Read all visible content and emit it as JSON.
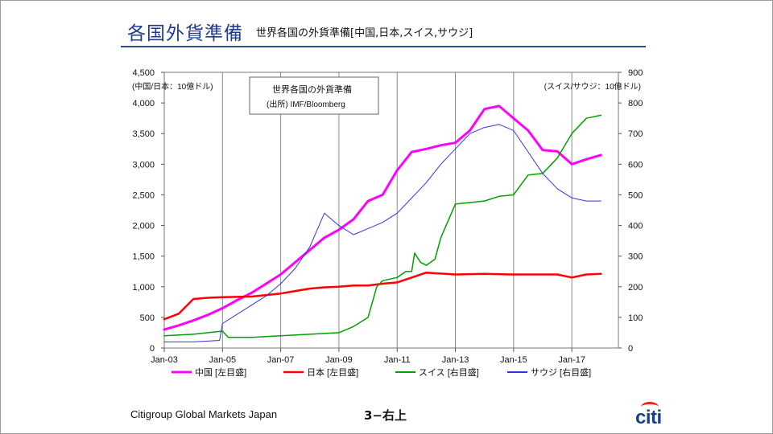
{
  "slide": {
    "title": "各国外貨準備",
    "subtitle": "世界各国の外貨準備[中国,日本,スイス,サウジ]",
    "footer_company": "Citigroup Global Markets Japan",
    "page_label": "3−右上",
    "logo_text": "citi"
  },
  "chart_data": {
    "type": "line",
    "annotation": [
      "世界各国の外貨準備",
      "(出所) IMF/Bloomberg"
    ],
    "left_axis_label": "(中国/日本：10億ドル)",
    "right_axis_label": "(スイス/サウジ：10億ドル)",
    "x_ticks": [
      "Jan-03",
      "Jan-05",
      "Jan-07",
      "Jan-09",
      "Jan-11",
      "Jan-13",
      "Jan-15",
      "Jan-17"
    ],
    "x_range": [
      2003.0,
      2018.6
    ],
    "y_left": {
      "min": 0,
      "max": 4500,
      "ticks": [
        "0",
        "500",
        "1,000",
        "1,500",
        "2,000",
        "2,500",
        "3,000",
        "3,500",
        "4,000",
        "4,500"
      ]
    },
    "y_right": {
      "min": 0,
      "max": 900,
      "ticks": [
        "0",
        "100",
        "200",
        "300",
        "400",
        "500",
        "600",
        "700",
        "800",
        "900"
      ]
    },
    "grid": "vertical",
    "legend_position": "bottom",
    "series": [
      {
        "name": "中国 [左目盛]",
        "axis": "left",
        "color": "#ff00ff",
        "width": 3,
        "x": [
          2003.0,
          2003.5,
          2004.0,
          2004.5,
          2005.0,
          2005.5,
          2006.0,
          2006.5,
          2007.0,
          2007.5,
          2008.0,
          2008.5,
          2009.0,
          2009.5,
          2010.0,
          2010.5,
          2011.0,
          2011.5,
          2012.0,
          2012.5,
          2013.0,
          2013.5,
          2014.0,
          2014.5,
          2015.0,
          2015.5,
          2016.0,
          2016.5,
          2017.0,
          2017.5,
          2018.0
        ],
        "y": [
          300,
          370,
          450,
          540,
          650,
          780,
          900,
          1050,
          1200,
          1400,
          1600,
          1800,
          1930,
          2100,
          2400,
          2500,
          2900,
          3200,
          3250,
          3310,
          3350,
          3550,
          3900,
          3950,
          3750,
          3550,
          3230,
          3210,
          3000,
          3080,
          3150
        ]
      },
      {
        "name": "日本 [左目盛]",
        "axis": "left",
        "color": "#ff0000",
        "width": 2.5,
        "x": [
          2003.0,
          2003.5,
          2004.0,
          2004.5,
          2005.0,
          2006.0,
          2007.0,
          2007.5,
          2008.0,
          2008.5,
          2009.0,
          2009.5,
          2010.0,
          2010.5,
          2011.0,
          2011.5,
          2012.0,
          2013.0,
          2014.0,
          2015.0,
          2016.0,
          2016.5,
          2017.0,
          2017.5,
          2018.0
        ],
        "y": [
          470,
          560,
          800,
          820,
          830,
          840,
          890,
          930,
          970,
          990,
          1000,
          1020,
          1020,
          1050,
          1070,
          1150,
          1230,
          1200,
          1210,
          1200,
          1200,
          1200,
          1150,
          1200,
          1210
        ]
      },
      {
        "name": "スイス [右目盛]",
        "axis": "right",
        "color": "#00a000",
        "width": 1.5,
        "x": [
          2003.0,
          2004.0,
          2005.0,
          2005.2,
          2006.0,
          2007.0,
          2008.0,
          2009.0,
          2009.5,
          2010.0,
          2010.3,
          2010.5,
          2011.0,
          2011.3,
          2011.5,
          2011.6,
          2011.8,
          2012.0,
          2012.3,
          2012.5,
          2013.0,
          2014.0,
          2014.5,
          2015.0,
          2015.5,
          2016.0,
          2016.5,
          2017.0,
          2017.5,
          2018.0
        ],
        "y": [
          40,
          45,
          55,
          35,
          35,
          40,
          45,
          50,
          70,
          100,
          200,
          220,
          230,
          250,
          250,
          310,
          280,
          270,
          290,
          360,
          470,
          480,
          495,
          500,
          565,
          570,
          620,
          700,
          750,
          760
        ]
      },
      {
        "name": "サウジ [右目盛]",
        "axis": "right",
        "color": "#3333dd",
        "width": 1,
        "x": [
          2003.0,
          2004.0,
          2004.9,
          2005.0,
          2005.5,
          2006.0,
          2006.5,
          2007.0,
          2007.5,
          2008.0,
          2008.5,
          2009.0,
          2009.5,
          2010.0,
          2010.5,
          2011.0,
          2011.5,
          2012.0,
          2012.5,
          2013.0,
          2013.5,
          2014.0,
          2014.5,
          2015.0,
          2015.5,
          2016.0,
          2016.5,
          2017.0,
          2017.5,
          2018.0
        ],
        "y": [
          20,
          20,
          25,
          80,
          110,
          140,
          170,
          210,
          260,
          330,
          440,
          400,
          370,
          390,
          410,
          440,
          490,
          540,
          600,
          650,
          700,
          720,
          730,
          710,
          640,
          570,
          520,
          490,
          480,
          480
        ]
      }
    ]
  }
}
